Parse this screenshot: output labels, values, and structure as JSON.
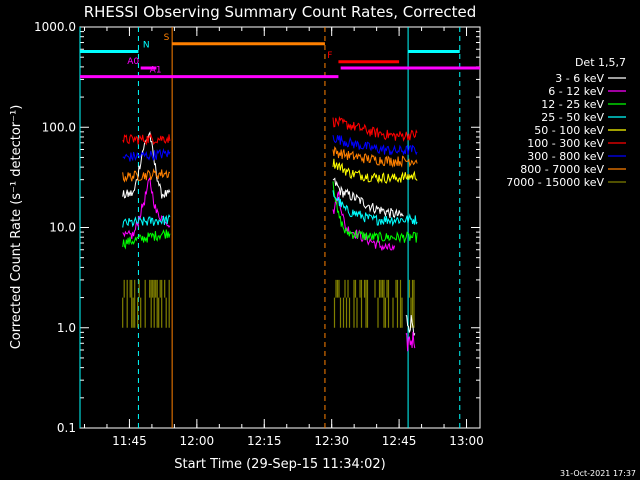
{
  "chart_data": {
    "type": "line",
    "title": "RHESSI Observing Summary Count Rates, Corrected",
    "xlabel": "Start Time (29-Sep-15 11:34:02)",
    "ylabel": "Corrected Count Rate (s⁻¹ detector⁻¹)",
    "footer": "31-Oct-2021 17:37",
    "x_unit": "minutes after 11:34:02",
    "xlim": [
      0,
      89
    ],
    "ylim": [
      0.1,
      1000
    ],
    "yscale": "log",
    "x_ticks": [
      {
        "x": 11,
        "label": "11:45"
      },
      {
        "x": 26,
        "label": "12:00"
      },
      {
        "x": 41,
        "label": "12:15"
      },
      {
        "x": 56,
        "label": "12:30"
      },
      {
        "x": 71,
        "label": "12:45"
      },
      {
        "x": 86,
        "label": "13:00"
      }
    ],
    "y_ticks": [
      {
        "y": 0.1,
        "label": "0.1"
      },
      {
        "y": 1,
        "label": "1.0"
      },
      {
        "y": 10,
        "label": "10.0"
      },
      {
        "y": 100,
        "label": "100.0"
      },
      {
        "y": 1000,
        "label": "1000.0"
      }
    ],
    "legend": {
      "title": "Det 1,5,7",
      "placement": "right"
    },
    "series": [
      {
        "name": "3 - 6 keV",
        "color": "#ffffff",
        "seg1": [
          [
            9.5,
            21
          ],
          [
            12,
            22
          ],
          [
            14,
            60
          ],
          [
            15.5,
            90
          ],
          [
            16.5,
            45
          ],
          [
            18,
            22
          ],
          [
            20,
            21
          ]
        ],
        "seg2": [
          [
            56.3,
            30
          ],
          [
            58,
            23
          ],
          [
            61,
            20
          ],
          [
            65,
            16
          ],
          [
            69,
            14
          ],
          [
            72,
            13
          ]
        ],
        "seg3": [
          [
            72.5,
            1.2
          ],
          [
            74.5,
            1.1
          ]
        ]
      },
      {
        "name": "6 - 12 keV",
        "color": "#ff00ff",
        "seg1": [
          [
            9.5,
            8
          ],
          [
            12,
            8.5
          ],
          [
            14.5,
            20
          ],
          [
            15.5,
            30
          ],
          [
            17,
            14
          ],
          [
            20,
            11
          ]
        ],
        "seg2": [
          [
            56.3,
            14
          ],
          [
            57.5,
            22
          ],
          [
            59,
            10
          ],
          [
            63,
            8
          ],
          [
            67,
            6.5
          ],
          [
            70,
            6
          ]
        ],
        "seg3": [
          [
            72.5,
            0.7
          ],
          [
            74.5,
            0.8
          ]
        ]
      },
      {
        "name": "12 - 25 keV",
        "color": "#00ff00",
        "seg1": [
          [
            9.5,
            7
          ],
          [
            20,
            9
          ]
        ],
        "seg2": [
          [
            56.3,
            30
          ],
          [
            57.3,
            14
          ],
          [
            59,
            9
          ],
          [
            65,
            8
          ],
          [
            73,
            8
          ],
          [
            75,
            8
          ]
        ],
        "seg3": []
      },
      {
        "name": "25 - 50 keV",
        "color": "#00ffff",
        "seg1": [
          [
            9.5,
            11
          ],
          [
            20,
            12
          ]
        ],
        "seg2": [
          [
            56.3,
            22
          ],
          [
            59,
            15
          ],
          [
            65,
            12
          ],
          [
            75,
            12
          ]
        ],
        "seg3": []
      },
      {
        "name": "50 - 100 keV",
        "color": "#ffff00",
        "seg1": [],
        "seg2": [
          [
            56.3,
            45
          ],
          [
            60,
            35
          ],
          [
            65,
            32
          ],
          [
            70,
            31
          ],
          [
            75,
            33
          ]
        ],
        "seg3": []
      },
      {
        "name": "100 - 300 keV",
        "color": "#ff0000",
        "seg1": [
          [
            9.5,
            75
          ],
          [
            20,
            78
          ]
        ],
        "seg2": [
          [
            56.3,
            115
          ],
          [
            60,
            105
          ],
          [
            65,
            90
          ],
          [
            70,
            82
          ],
          [
            75,
            85
          ]
        ],
        "seg3": []
      },
      {
        "name": "300 - 800 keV",
        "color": "#0000ff",
        "seg1": [
          [
            9.5,
            50
          ],
          [
            20,
            55
          ]
        ],
        "seg2": [
          [
            56.3,
            80
          ],
          [
            60,
            70
          ],
          [
            65,
            62
          ],
          [
            70,
            58
          ],
          [
            75,
            60
          ]
        ],
        "seg3": []
      },
      {
        "name": "800 - 7000 keV",
        "color": "#ff8000",
        "seg1": [
          [
            9.5,
            32
          ],
          [
            20,
            35
          ]
        ],
        "seg2": [
          [
            56.3,
            58
          ],
          [
            60,
            52
          ],
          [
            65,
            48
          ],
          [
            70,
            46
          ],
          [
            75,
            47
          ]
        ],
        "seg3": []
      },
      {
        "name": "7000 - 15000 keV",
        "color": "#808000",
        "seg1": [],
        "seg2": [],
        "seg3": []
      }
    ],
    "noise_band": {
      "color": "#808000",
      "levels": [
        1,
        2,
        3
      ],
      "ranges": [
        [
          9.5,
          20
        ],
        [
          56.3,
          74.5
        ]
      ]
    },
    "vertical_lines": [
      {
        "x": 0,
        "color": "#00ffff",
        "style": "solid"
      },
      {
        "x": 13,
        "color": "#00ffff",
        "style": "dashed"
      },
      {
        "x": 20.5,
        "color": "#ff8000",
        "style": "solid"
      },
      {
        "x": 54.5,
        "color": "#ff8000",
        "style": "dashed"
      },
      {
        "x": 73,
        "color": "#00ffff",
        "style": "solid"
      },
      {
        "x": 84.5,
        "color": "#00ffff",
        "style": "dashed"
      }
    ],
    "bars": [
      {
        "label": "N",
        "color": "#00ffff",
        "y": 570,
        "x_start": 0,
        "x_end": 13,
        "label_x": 14
      },
      {
        "label": "N",
        "color": "#00ffff",
        "y": 570,
        "x_start": 73,
        "x_end": 84.5,
        "label_x": null
      },
      {
        "label": "S",
        "color": "#ff8000",
        "y": 680,
        "x_start": 20.5,
        "x_end": 54.5,
        "label_x": 18.6
      },
      {
        "label": "F",
        "color": "#ff0000",
        "y": 450,
        "x_start": 57.5,
        "x_end": 71,
        "label_x": 55
      },
      {
        "label": "A0",
        "color": "#ff00ff",
        "y": 390,
        "x_start": 13.5,
        "x_end": 17,
        "label_x": 10.5
      },
      {
        "label": "A1",
        "color": "#ff00ff",
        "y": 320,
        "x_start": 0,
        "x_end": 57.5,
        "label_x": 15.5
      },
      {
        "label": "",
        "color": "#ff00ff",
        "y": 390,
        "x_start": 58,
        "x_end": 89,
        "label_x": null
      }
    ]
  }
}
